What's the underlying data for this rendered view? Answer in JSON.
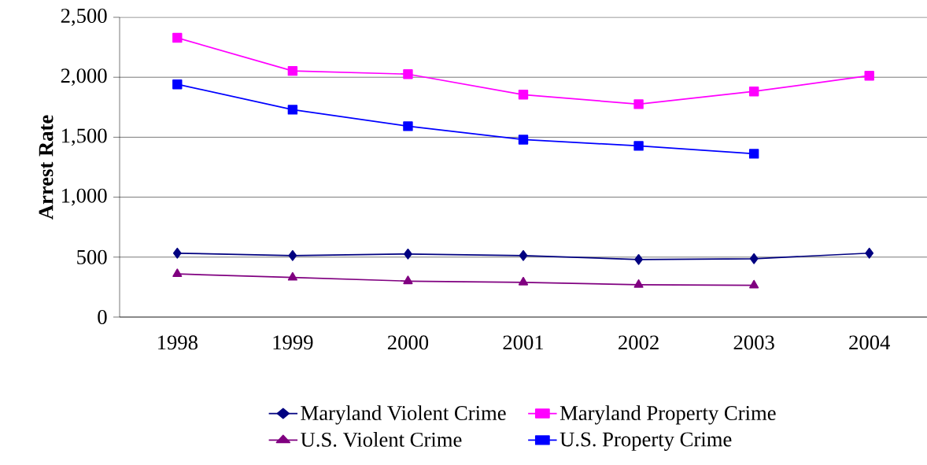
{
  "chart_data": {
    "type": "line",
    "ylabel": "Arrest Rate",
    "categories": [
      "1998",
      "1999",
      "2000",
      "2001",
      "2002",
      "2003",
      "2004"
    ],
    "ylim": [
      0,
      2500
    ],
    "yticks": [
      {
        "value": 0,
        "label": "0"
      },
      {
        "value": 500,
        "label": "500"
      },
      {
        "value": 1000,
        "label": "1,000"
      },
      {
        "value": 1500,
        "label": "1,500"
      },
      {
        "value": 2000,
        "label": "2,000"
      },
      {
        "value": 2500,
        "label": "2,500"
      }
    ],
    "grid": "y",
    "legend": "bottom",
    "line_style": "solid",
    "series": [
      {
        "name": "Maryland Violent Crime",
        "color": "#000080",
        "marker": "diamond",
        "values": [
          533,
          513,
          526,
          513,
          480,
          487,
          533
        ]
      },
      {
        "name": "Maryland Property Crime",
        "color": "#ff00ff",
        "marker": "square",
        "values": [
          2329,
          2053,
          2026,
          1855,
          1776,
          1882,
          2013
        ]
      },
      {
        "name": "U.S. Violent Crime",
        "color": "#800080",
        "marker": "triangle",
        "values": [
          360,
          330,
          300,
          290,
          270,
          265,
          null
        ]
      },
      {
        "name": "U.S. Property Crime",
        "color": "#0000ff",
        "marker": "square",
        "values": [
          1941,
          1730,
          1592,
          1480,
          1428,
          1362,
          null
        ]
      }
    ]
  }
}
